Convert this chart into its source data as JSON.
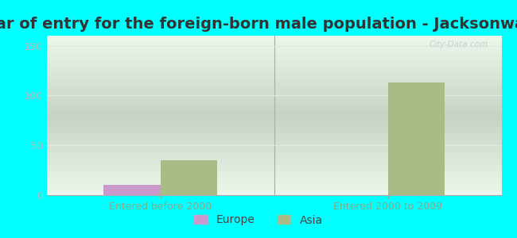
{
  "title": "Year of entry for the foreign-born male population - Jacksonwald",
  "groups": [
    "Entered before 2000",
    "Entered 2000 to 2009"
  ],
  "series": [
    "Europe",
    "Asia"
  ],
  "values": {
    "Europe": [
      10,
      0
    ],
    "Asia": [
      35,
      113
    ]
  },
  "colors": {
    "Europe": "#cc99cc",
    "Asia": "#aabb88"
  },
  "ylim": [
    0,
    160
  ],
  "yticks": [
    0,
    50,
    100,
    150
  ],
  "background_outer": "#00ffff",
  "background_plot_top": "#e0f0e8",
  "background_plot_bottom": "#d0eedc",
  "grid_color": "#e0e8e0",
  "title_fontsize": 14,
  "label_fontsize": 9,
  "bar_width": 0.25,
  "watermark": "City-Data.com",
  "xtick_color": "#88aa88",
  "ytick_color": "#bbbbbb",
  "separator_color": "#aaaaaa"
}
